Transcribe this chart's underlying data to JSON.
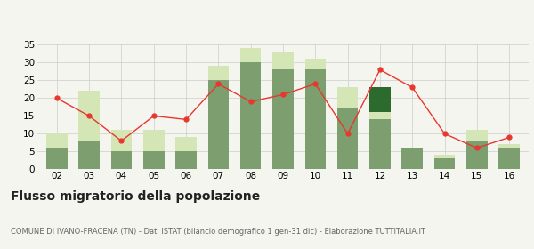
{
  "years": [
    "02",
    "03",
    "04",
    "05",
    "06",
    "07",
    "08",
    "09",
    "10",
    "11",
    "12",
    "13",
    "14",
    "15",
    "16"
  ],
  "iscritti_comuni": [
    6,
    8,
    5,
    5,
    5,
    25,
    30,
    28,
    28,
    17,
    14,
    6,
    3,
    8,
    6
  ],
  "iscritti_estero": [
    4,
    14,
    6,
    6,
    4,
    4,
    4,
    5,
    3,
    6,
    2,
    0,
    1,
    3,
    1
  ],
  "iscritti_altri": [
    0,
    0,
    0,
    0,
    0,
    0,
    0,
    0,
    0,
    0,
    7,
    0,
    0,
    0,
    0
  ],
  "cancellati": [
    20,
    15,
    8,
    15,
    14,
    24,
    19,
    21,
    24,
    10,
    28,
    23,
    10,
    6,
    9
  ],
  "color_comuni": "#7d9e6e",
  "color_estero": "#d4e6b5",
  "color_altri": "#2d6a2d",
  "color_cancellati": "#e8372e",
  "title": "Flusso migratorio della popolazione",
  "subtitle": "COMUNE DI IVANO-FRACENA (TN) - Dati ISTAT (bilancio demografico 1 gen-31 dic) - Elaborazione TUTTITALIA.IT",
  "ylim": [
    0,
    35
  ],
  "yticks": [
    0,
    5,
    10,
    15,
    20,
    25,
    30,
    35
  ],
  "background_color": "#f5f5f0",
  "grid_color": "#cccccc",
  "bar_width": 0.65
}
